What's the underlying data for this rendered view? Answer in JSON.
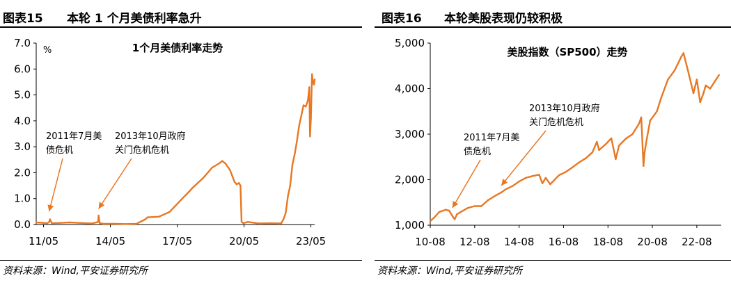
{
  "left_panel": {
    "figure_number": "图表15",
    "figure_title": "本轮 1 个月美债利率急升",
    "source": "资料来源：Wind,平安证券研究所"
  },
  "right_panel": {
    "figure_number": "图表16",
    "figure_title": "本轮美股表现仍较积极",
    "source": "资料来源：Wind,平安证券研究所"
  },
  "accent_color": "#E87722",
  "chart_data": [
    {
      "type": "line",
      "title": "1个月美债利率走势",
      "ylabel": "%",
      "xlabel": "",
      "ylim": [
        0,
        7
      ],
      "yticks": [
        "0.0",
        "1.0",
        "2.0",
        "3.0",
        "4.0",
        "5.0",
        "6.0",
        "7.0"
      ],
      "xlim": [
        2011.0,
        2023.5
      ],
      "xticks": [
        {
          "value": 2011.33,
          "label": "11/05"
        },
        {
          "value": 2014.33,
          "label": "14/05"
        },
        {
          "value": 2017.33,
          "label": "17/05"
        },
        {
          "value": 2020.33,
          "label": "20/05"
        },
        {
          "value": 2023.33,
          "label": "23/05"
        }
      ],
      "series": [
        {
          "color": "#E87722",
          "x": [
            2011.0,
            2011.5,
            2011.58,
            2011.62,
            2011.7,
            2012.0,
            2012.5,
            2013.0,
            2013.5,
            2013.78,
            2013.8,
            2013.85,
            2014.0,
            2014.5,
            2015.0,
            2015.5,
            2015.9,
            2016.0,
            2016.5,
            2016.9,
            2017.0,
            2017.5,
            2017.9,
            2018.0,
            2018.5,
            2018.9,
            2019.2,
            2019.35,
            2019.5,
            2019.7,
            2019.9,
            2020.0,
            2020.1,
            2020.17,
            2020.22,
            2020.3,
            2020.5,
            2021.0,
            2021.5,
            2021.9,
            2022.0,
            2022.1,
            2022.2,
            2022.3,
            2022.4,
            2022.5,
            2022.6,
            2022.7,
            2022.8,
            2022.9,
            2023.0,
            2023.1,
            2023.2,
            2023.26,
            2023.29,
            2023.33,
            2023.38,
            2023.42,
            2023.47,
            2023.5
          ],
          "y": [
            0.08,
            0.05,
            0.1,
            0.2,
            0.05,
            0.06,
            0.08,
            0.06,
            0.04,
            0.1,
            0.35,
            0.05,
            0.03,
            0.03,
            0.02,
            0.03,
            0.2,
            0.28,
            0.3,
            0.45,
            0.5,
            0.95,
            1.3,
            1.4,
            1.8,
            2.2,
            2.35,
            2.45,
            2.35,
            2.1,
            1.65,
            1.55,
            1.6,
            1.5,
            0.1,
            0.05,
            0.1,
            0.04,
            0.05,
            0.04,
            0.05,
            0.2,
            0.45,
            1.1,
            1.5,
            2.3,
            2.7,
            3.2,
            3.8,
            4.2,
            4.6,
            4.55,
            4.8,
            5.3,
            3.4,
            4.1,
            5.8,
            5.5,
            5.4,
            5.6
          ]
        }
      ],
      "annotations": [
        {
          "text_lines": [
            "2011年7月美",
            "债危机"
          ],
          "target_x": 2011.58,
          "target_y": 0.4
        },
        {
          "text_lines": [
            "2013年10月政府",
            "关门危机危机"
          ],
          "target_x": 2013.8,
          "target_y": 0.5
        }
      ]
    },
    {
      "type": "line",
      "title": "美股指数（SP500）走势",
      "xlabel": "",
      "ylabel": "",
      "ylim": [
        1000,
        5000
      ],
      "yticks": [
        "1,000",
        "2,000",
        "3,000",
        "4,000",
        "5,000"
      ],
      "xlim": [
        2010.6,
        2023.7
      ],
      "xticks": [
        {
          "value": 2010.6,
          "label": "10-08"
        },
        {
          "value": 2012.6,
          "label": "12-08"
        },
        {
          "value": 2014.6,
          "label": "14-08"
        },
        {
          "value": 2016.6,
          "label": "16-08"
        },
        {
          "value": 2018.6,
          "label": "18-08"
        },
        {
          "value": 2020.6,
          "label": "20-08"
        },
        {
          "value": 2022.6,
          "label": "22-08"
        }
      ],
      "series": [
        {
          "color": "#E87722",
          "x": [
            2010.6,
            2010.8,
            2011.0,
            2011.3,
            2011.45,
            2011.6,
            2011.7,
            2011.8,
            2012.0,
            2012.3,
            2012.6,
            2012.9,
            2013.2,
            2013.5,
            2013.8,
            2014.0,
            2014.3,
            2014.6,
            2014.9,
            2015.2,
            2015.5,
            2015.65,
            2015.8,
            2016.0,
            2016.1,
            2016.4,
            2016.7,
            2017.0,
            2017.3,
            2017.6,
            2017.9,
            2018.1,
            2018.2,
            2018.5,
            2018.75,
            2018.95,
            2019.1,
            2019.4,
            2019.7,
            2020.0,
            2020.1,
            2020.2,
            2020.25,
            2020.35,
            2020.5,
            2020.8,
            2021.0,
            2021.3,
            2021.6,
            2021.9,
            2022.0,
            2022.2,
            2022.45,
            2022.6,
            2022.75,
            2022.9,
            2023.0,
            2023.2,
            2023.4,
            2023.6
          ],
          "y": [
            1090,
            1180,
            1290,
            1340,
            1320,
            1200,
            1130,
            1240,
            1300,
            1380,
            1420,
            1420,
            1550,
            1640,
            1720,
            1790,
            1860,
            1960,
            2040,
            2080,
            2110,
            1920,
            2040,
            1900,
            1950,
            2100,
            2170,
            2270,
            2380,
            2470,
            2600,
            2830,
            2650,
            2780,
            2910,
            2450,
            2750,
            2900,
            3000,
            3230,
            3370,
            2300,
            2600,
            2900,
            3300,
            3500,
            3800,
            4200,
            4400,
            4700,
            4780,
            4400,
            3900,
            4200,
            3700,
            3900,
            4070,
            4000,
            4150,
            4300
          ]
        }
      ],
      "annotations": [
        {
          "text_lines": [
            "2011年7月美",
            "债危机"
          ],
          "target_x": 2011.6,
          "target_y": 1320
        },
        {
          "text_lines": [
            "2013年10月政府",
            "关门危机危机"
          ],
          "target_x": 2013.8,
          "target_y": 1810
        }
      ]
    }
  ]
}
